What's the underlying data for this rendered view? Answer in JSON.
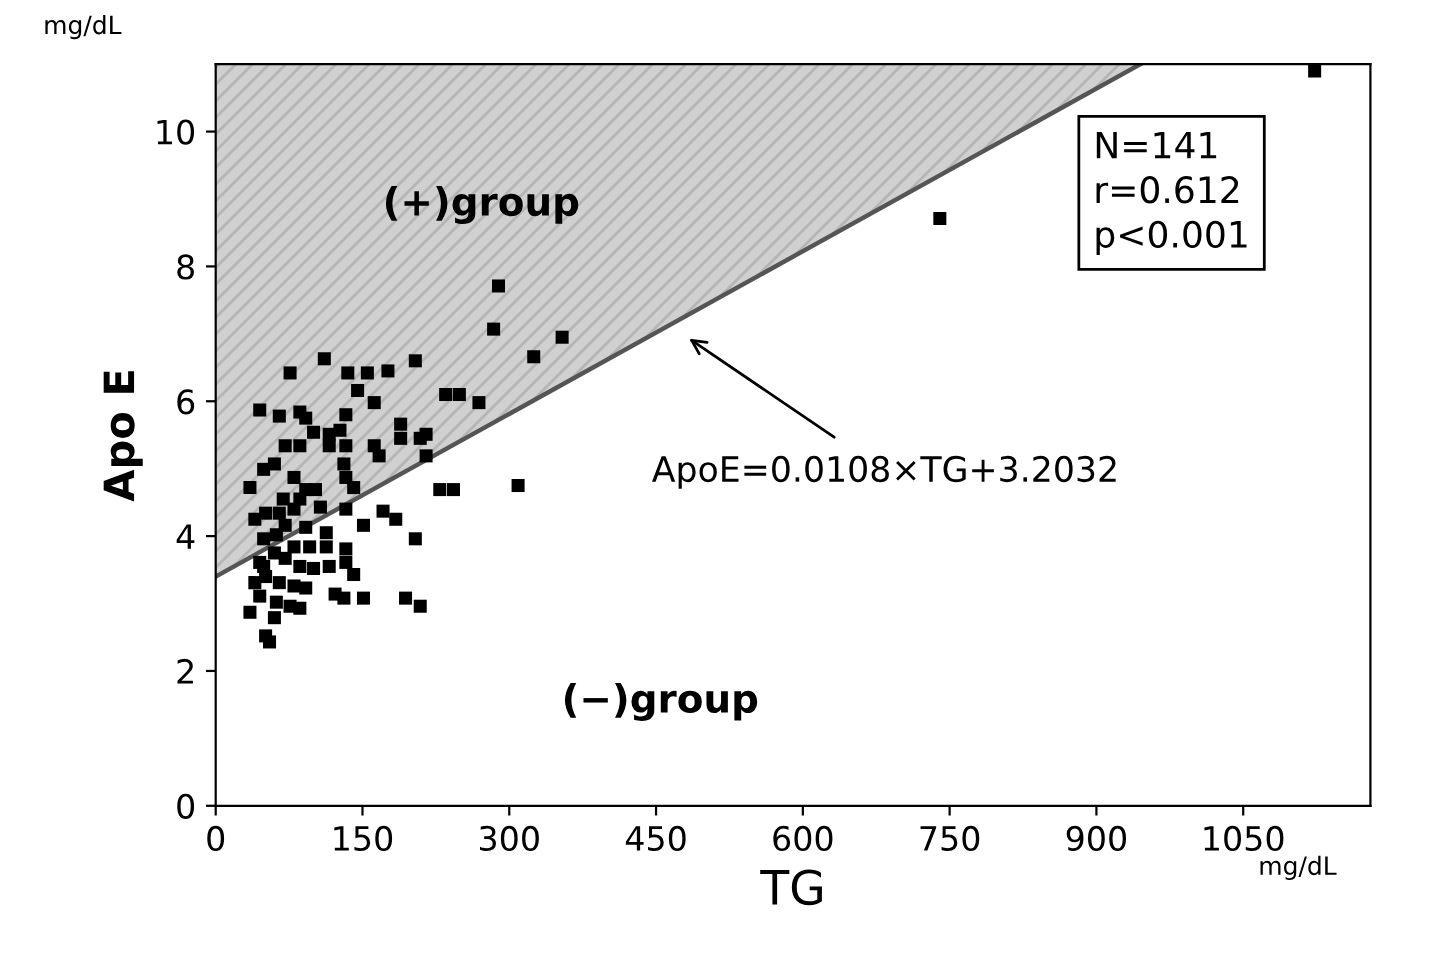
{
  "chart_data": {
    "type": "scatter",
    "xlabel": "TG",
    "ylabel": "Apo E",
    "grid": false,
    "xlim": [
      0,
      1180
    ],
    "ylim": [
      0,
      11
    ],
    "xticks": [
      0,
      150,
      300,
      450,
      600,
      750,
      900,
      1050
    ],
    "yticks": [
      0,
      2,
      4,
      6,
      8,
      10
    ],
    "series": [
      {
        "color": "#000000",
        "marker": "square",
        "x": [
          289,
          284,
          354,
          325,
          111,
          76,
          135,
          155,
          176,
          204,
          145,
          235,
          249,
          269,
          162,
          45,
          65,
          86,
          92,
          133,
          189,
          127,
          100,
          116,
          215,
          209,
          189,
          71,
          86,
          116,
          133,
          162,
          167,
          215,
          60,
          131,
          49,
          80,
          133,
          141,
          35,
          229,
          243,
          309,
          92,
          102,
          69,
          86,
          51,
          65,
          40,
          80,
          107,
          133,
          171,
          184,
          151,
          71,
          92,
          113,
          49,
          62,
          204,
          80,
          96,
          113,
          133,
          60,
          45,
          71,
          86,
          100,
          116,
          133,
          141,
          51,
          65,
          80,
          92,
          122,
          131,
          151,
          45,
          62,
          76,
          86,
          194,
          209,
          35,
          60,
          51,
          55,
          40,
          49,
          740,
          1123
        ],
        "values": [
          7.71,
          7.07,
          6.95,
          6.66,
          6.63,
          6.42,
          6.42,
          6.42,
          6.45,
          6.6,
          6.16,
          6.1,
          6.1,
          5.98,
          5.98,
          5.87,
          5.78,
          5.84,
          5.75,
          5.8,
          5.66,
          5.57,
          5.54,
          5.51,
          5.51,
          5.45,
          5.45,
          5.34,
          5.34,
          5.34,
          5.34,
          5.34,
          5.19,
          5.19,
          5.07,
          5.07,
          4.99,
          4.87,
          4.87,
          4.72,
          4.72,
          4.69,
          4.69,
          4.75,
          4.69,
          4.69,
          4.55,
          4.55,
          4.34,
          4.34,
          4.25,
          4.4,
          4.43,
          4.4,
          4.37,
          4.25,
          4.16,
          4.16,
          4.13,
          4.05,
          3.96,
          4.02,
          3.96,
          3.84,
          3.84,
          3.84,
          3.81,
          3.75,
          3.61,
          3.67,
          3.55,
          3.52,
          3.55,
          3.61,
          3.43,
          3.4,
          3.31,
          3.26,
          3.23,
          3.14,
          3.08,
          3.08,
          3.11,
          3.02,
          2.96,
          2.93,
          3.08,
          2.96,
          2.87,
          2.79,
          2.52,
          2.43,
          3.31,
          3.55,
          8.71,
          10.9
        ]
      },
      {
        "type": "line",
        "marker": "none",
        "color": "#555555",
        "x": [
          0,
          945
        ],
        "values": [
          3.4,
          11
        ],
        "lower": [
          3.4,
          11
        ],
        "upper": [
          11,
          11
        ]
      }
    ],
    "annotations": [
      "(+)group",
      "(−)group",
      "ApoE=0.0108×TG+3.2032",
      "N=141\nr=0.612\np<0.001",
      "mg/dL",
      "mg/dL"
    ]
  }
}
